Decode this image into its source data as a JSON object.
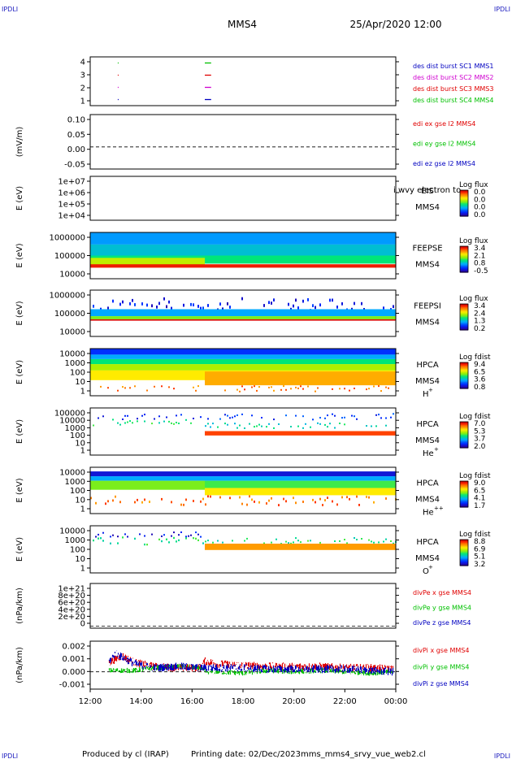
{
  "corner_marks": [
    "IPDLI",
    "IPDLI",
    "IPDLI",
    "IPDLI"
  ],
  "header": {
    "spacecraft": "MMS4",
    "datetime": "25/Apr/2020 12:00"
  },
  "footer": {
    "produced_by": "Produced by cl (IRAP)",
    "printing_date": "Printing date: 02/Dec/2023",
    "filename": "mms_mms4_srvy_vue_web2.cl"
  },
  "time_axis": {
    "start": "12:00",
    "end": "00:00",
    "tick_labels": [
      "12:00",
      "14:00",
      "16:00",
      "18:00",
      "20:00",
      "22:00",
      "00:00"
    ]
  },
  "colors": {
    "red": "#e00000",
    "green": "#00c000",
    "blue": "#0000c0",
    "magenta": "#d000d0",
    "frame": "#000000"
  },
  "chart_data": [
    {
      "type": "scatter",
      "yticks": [
        "4",
        "3",
        "2",
        "1"
      ],
      "ylim": [
        0.5,
        4.5
      ],
      "legend": [
        {
          "text": "des dist burst SC1 MMS1",
          "color": "#0000c0"
        },
        {
          "text": "des dist burst SC2 MMS2",
          "color": "#d000d0"
        },
        {
          "text": "des dist burst SC3 MMS3",
          "color": "#e00000"
        },
        {
          "text": "des dist burst SC4 MMS4",
          "color": "#00c000"
        }
      ],
      "series": [
        {
          "level": 4,
          "color": "#00c000",
          "intervals": [
            [
              "13:05",
              "13:06"
            ],
            [
              "16:30",
              "16:45"
            ]
          ]
        },
        {
          "level": 3,
          "color": "#e00000",
          "intervals": [
            [
              "13:05",
              "13:06"
            ],
            [
              "16:30",
              "16:45"
            ]
          ]
        },
        {
          "level": 2,
          "color": "#d000d0",
          "intervals": [
            [
              "13:05",
              "13:06"
            ],
            [
              "16:30",
              "16:45"
            ]
          ]
        },
        {
          "level": 1,
          "color": "#0000c0",
          "intervals": [
            [
              "13:05",
              "13:06"
            ],
            [
              "16:30",
              "16:45"
            ]
          ]
        }
      ]
    },
    {
      "type": "line",
      "ylabel": "(mV/m)",
      "yticks": [
        "0.10",
        "0.05",
        "0.00",
        "-0.05"
      ],
      "ylim": [
        -0.075,
        0.11
      ],
      "zero_line": "dashed",
      "legend": [
        {
          "text": "edi ex gse l2 MMS4",
          "color": "#e00000"
        },
        {
          "text": "edi ey gse l2 MMS4",
          "color": "#00c000"
        },
        {
          "text": "edi ez gse l2 MMS4",
          "color": "#0000c0"
        }
      ]
    },
    {
      "type": "heatmap",
      "ylabel": "E (eV)",
      "yticks": [
        "1e+07",
        "1e+06",
        "1e+05",
        "1e+04"
      ],
      "scale": "log",
      "ylim": [
        10000,
        10000000
      ],
      "instrument": [
        "EIS",
        "MMS4"
      ],
      "overlay_text": "i wvy electron to",
      "colorbar": {
        "title": "Log flux",
        "ticks": [
          "0.0",
          "0.0",
          "0.0",
          "0.0"
        ]
      },
      "bands": []
    },
    {
      "type": "heatmap",
      "ylabel": "E (eV)",
      "yticks": [
        "1000000",
        "100000",
        "10000"
      ],
      "scale": "log",
      "ylim": [
        10000,
        1000000
      ],
      "instrument": [
        "FEEPSE",
        "MMS4"
      ],
      "colorbar": {
        "title": "Log flux",
        "ticks": [
          "3.4",
          "2.1",
          "0.8",
          "-0.5"
        ]
      },
      "bands": [
        {
          "t0": "12:00",
          "t1": "00:00",
          "e0": 300000,
          "e1": 1000000,
          "level": 0.28
        },
        {
          "t0": "12:00",
          "t1": "00:00",
          "e0": 100000,
          "e1": 300000,
          "level": 0.35
        },
        {
          "t0": "12:00",
          "t1": "00:00",
          "e0": 45000,
          "e1": 100000,
          "level": 0.45
        },
        {
          "t0": "12:00",
          "t1": "16:30",
          "e0": 38000,
          "e1": 80000,
          "level": 0.62
        },
        {
          "t0": "12:00",
          "t1": "00:00",
          "e0": 30000,
          "e1": 42000,
          "level": 0.95
        }
      ]
    },
    {
      "type": "heatmap",
      "ylabel": "E (eV)",
      "yticks": [
        "1000000",
        "100000",
        "10000"
      ],
      "scale": "log",
      "ylim": [
        10000,
        1000000
      ],
      "instrument": [
        "FEEPSI",
        "MMS4"
      ],
      "colorbar": {
        "title": "Log flux",
        "ticks": [
          "3.4",
          "2.4",
          "1.3",
          "0.2"
        ]
      },
      "bands": [
        {
          "t0": "12:00",
          "t1": "00:00",
          "e0": 150000,
          "e1": 500000,
          "level": 0.1,
          "speckle": true
        },
        {
          "t0": "12:00",
          "t1": "00:00",
          "e0": 75000,
          "e1": 150000,
          "level": 0.3
        },
        {
          "t0": "12:00",
          "t1": "00:00",
          "e0": 55000,
          "e1": 75000,
          "level": 0.55
        },
        {
          "t0": "12:00",
          "t1": "00:00",
          "e0": 48000,
          "e1": 55000,
          "level": 0.98
        }
      ]
    },
    {
      "type": "heatmap",
      "ylabel": "E (eV)",
      "yticks": [
        "10000",
        "1000",
        "100",
        "10",
        "1"
      ],
      "scale": "log",
      "ylim": [
        1,
        30000
      ],
      "instrument": [
        "HPCA",
        "MMS4",
        "H",
        "+"
      ],
      "colorbar": {
        "title": "Log fdist",
        "ticks": [
          "9.4",
          "6.5",
          "3.6",
          "0.8"
        ]
      },
      "bands": [
        {
          "t0": "12:00",
          "t1": "00:00",
          "e0": 8000,
          "e1": 30000,
          "level": 0.15
        },
        {
          "t0": "12:00",
          "t1": "00:00",
          "e0": 3000,
          "e1": 8000,
          "level": 0.3
        },
        {
          "t0": "12:00",
          "t1": "00:00",
          "e0": 1000,
          "e1": 3000,
          "level": 0.45
        },
        {
          "t0": "12:00",
          "t1": "00:00",
          "e0": 250,
          "e1": 1000,
          "level": 0.6
        },
        {
          "t0": "12:00",
          "t1": "00:00",
          "e0": 30,
          "e1": 250,
          "level": 0.7
        },
        {
          "t0": "16:30",
          "t1": "00:00",
          "e0": 10,
          "e1": 200,
          "level": 0.78
        },
        {
          "t0": "12:00",
          "t1": "00:00",
          "e0": 3,
          "e1": 10,
          "level": 0.85,
          "speckle": true
        }
      ]
    },
    {
      "type": "heatmap",
      "ylabel": "E (eV)",
      "yticks": [
        "100000",
        "10000",
        "1000",
        "100",
        "10",
        "1"
      ],
      "scale": "log",
      "ylim": [
        1,
        100000
      ],
      "instrument": [
        "HPCA",
        "MMS4",
        "He",
        "+"
      ],
      "colorbar": {
        "title": "Log fdist",
        "ticks": [
          "7.0",
          "5.3",
          "3.7",
          "2.0"
        ]
      },
      "bands": [
        {
          "t0": "12:00",
          "t1": "00:00",
          "e0": 7000,
          "e1": 30000,
          "level": 0.15,
          "speckle": true
        },
        {
          "t0": "12:00",
          "t1": "16:30",
          "e0": 1500,
          "e1": 7000,
          "level": 0.45,
          "speckle": true
        },
        {
          "t0": "16:30",
          "t1": "00:00",
          "e0": 800,
          "e1": 3000,
          "level": 0.4,
          "speckle": true
        },
        {
          "t0": "16:30",
          "t1": "00:00",
          "e0": 120,
          "e1": 350,
          "level": 0.9
        }
      ]
    },
    {
      "type": "heatmap",
      "ylabel": "E (eV)",
      "yticks": [
        "10000",
        "1000",
        "100",
        "10",
        "1"
      ],
      "scale": "log",
      "ylim": [
        1,
        30000
      ],
      "instrument": [
        "HPCA",
        "MMS4",
        "He",
        "++"
      ],
      "colorbar": {
        "title": "Log fdist",
        "ticks": [
          "9.0",
          "6.5",
          "4.1",
          "1.7"
        ]
      },
      "bands": [
        {
          "t0": "12:00",
          "t1": "00:00",
          "e0": 4000,
          "e1": 12000,
          "level": 0.08
        },
        {
          "t0": "12:00",
          "t1": "00:00",
          "e0": 1500,
          "e1": 4000,
          "level": 0.3
        },
        {
          "t0": "12:00",
          "t1": "16:30",
          "e0": 200,
          "e1": 1500,
          "level": 0.55
        },
        {
          "t0": "16:30",
          "t1": "00:00",
          "e0": 300,
          "e1": 1500,
          "level": 0.5
        },
        {
          "t0": "16:30",
          "t1": "00:00",
          "e0": 60,
          "e1": 300,
          "level": 0.7
        },
        {
          "t0": "12:00",
          "t1": "00:00",
          "e0": 8,
          "e1": 60,
          "level": 0.85,
          "speckle": true
        }
      ]
    },
    {
      "type": "heatmap",
      "ylabel": "E (eV)",
      "yticks": [
        "10000",
        "1000",
        "100",
        "10",
        "1"
      ],
      "scale": "log",
      "ylim": [
        1,
        30000
      ],
      "instrument": [
        "HPCA",
        "MMS4",
        "O",
        "+"
      ],
      "colorbar": {
        "title": "Log fdist",
        "ticks": [
          "8.8",
          "6.9",
          "5.1",
          "3.2"
        ]
      },
      "bands": [
        {
          "t0": "12:00",
          "t1": "16:30",
          "e0": 3000,
          "e1": 9000,
          "level": 0.1,
          "speckle": true
        },
        {
          "t0": "12:00",
          "t1": "16:30",
          "e0": 600,
          "e1": 3000,
          "level": 0.45,
          "speckle": true
        },
        {
          "t0": "16:30",
          "t1": "00:00",
          "e0": 700,
          "e1": 2500,
          "level": 0.45,
          "speckle": true
        },
        {
          "t0": "16:30",
          "t1": "00:00",
          "e0": 150,
          "e1": 600,
          "level": 0.8
        }
      ]
    },
    {
      "type": "line",
      "ylabel": "(nPa/km)",
      "yticks": [
        "1e+21",
        "8e+20",
        "6e+20",
        "4e+20",
        "2e+20",
        "0"
      ],
      "ylim": [
        -5e+19,
        1.1e+21
      ],
      "zero_line": "dashed",
      "legend": [
        {
          "text": "divPe x gse MMS4",
          "color": "#e00000"
        },
        {
          "text": "divPe y gse MMS4",
          "color": "#00c000"
        },
        {
          "text": "divPe z gse MMS4",
          "color": "#0000c0"
        }
      ]
    },
    {
      "type": "line",
      "ylabel": "(nPa/km)",
      "yticks": [
        "0.002",
        "0.001",
        "0.000",
        "-0.001"
      ],
      "ylim": [
        -0.0013,
        0.0023
      ],
      "zero_line": "dashed",
      "legend": [
        {
          "text": "divPi x gse MMS4",
          "color": "#e00000"
        },
        {
          "text": "divPi y gse MMS4",
          "color": "#00c000"
        },
        {
          "text": "divPi z gse MMS4",
          "color": "#0000c0"
        }
      ],
      "series": [
        {
          "name": "divPi x gse MMS4",
          "color": "#e00000",
          "x": [
            "12:45",
            "13:15",
            "13:45",
            "14:30",
            "15:30",
            "16:20",
            "16:30",
            "17:00",
            "18:00",
            "19:00",
            "20:00",
            "21:00",
            "22:00",
            "23:00",
            "23:55"
          ],
          "y": [
            0.0007,
            0.0012,
            0.0007,
            0.0004,
            0.0003,
            0.0003,
            0.0008,
            0.0006,
            0.0005,
            0.0004,
            0.0004,
            0.0004,
            0.0003,
            0.0003,
            0.0002
          ],
          "spread": 0.0003
        },
        {
          "name": "divPi y gse MMS4",
          "color": "#00c000",
          "x": [
            "12:45",
            "13:15",
            "13:45",
            "14:30",
            "15:30",
            "16:20",
            "16:30",
            "17:00",
            "18:00",
            "19:00",
            "20:00",
            "21:00",
            "22:00",
            "23:00",
            "23:55"
          ],
          "y": [
            0.0001,
            0.0001,
            0.0001,
            0.0003,
            0.0004,
            0.0003,
            0.0,
            0.0,
            -0.0001,
            0.0001,
            0.0,
            0.0001,
            0.0,
            -0.0001,
            0.0
          ],
          "spread": 0.0002
        },
        {
          "name": "divPi z gse MMS4",
          "color": "#0000c0",
          "x": [
            "12:45",
            "13:00",
            "13:15",
            "13:45",
            "14:30",
            "15:30",
            "16:20",
            "16:30",
            "17:00",
            "18:00",
            "19:00",
            "20:00",
            "21:00",
            "22:00",
            "23:00",
            "23:55"
          ],
          "y": [
            0.0008,
            0.0014,
            0.0011,
            0.0006,
            0.0003,
            0.0004,
            0.0003,
            0.0003,
            0.0003,
            0.0003,
            0.0002,
            0.0002,
            0.0002,
            0.0002,
            0.0001,
            0.0
          ],
          "spread": 0.0003
        }
      ]
    }
  ]
}
